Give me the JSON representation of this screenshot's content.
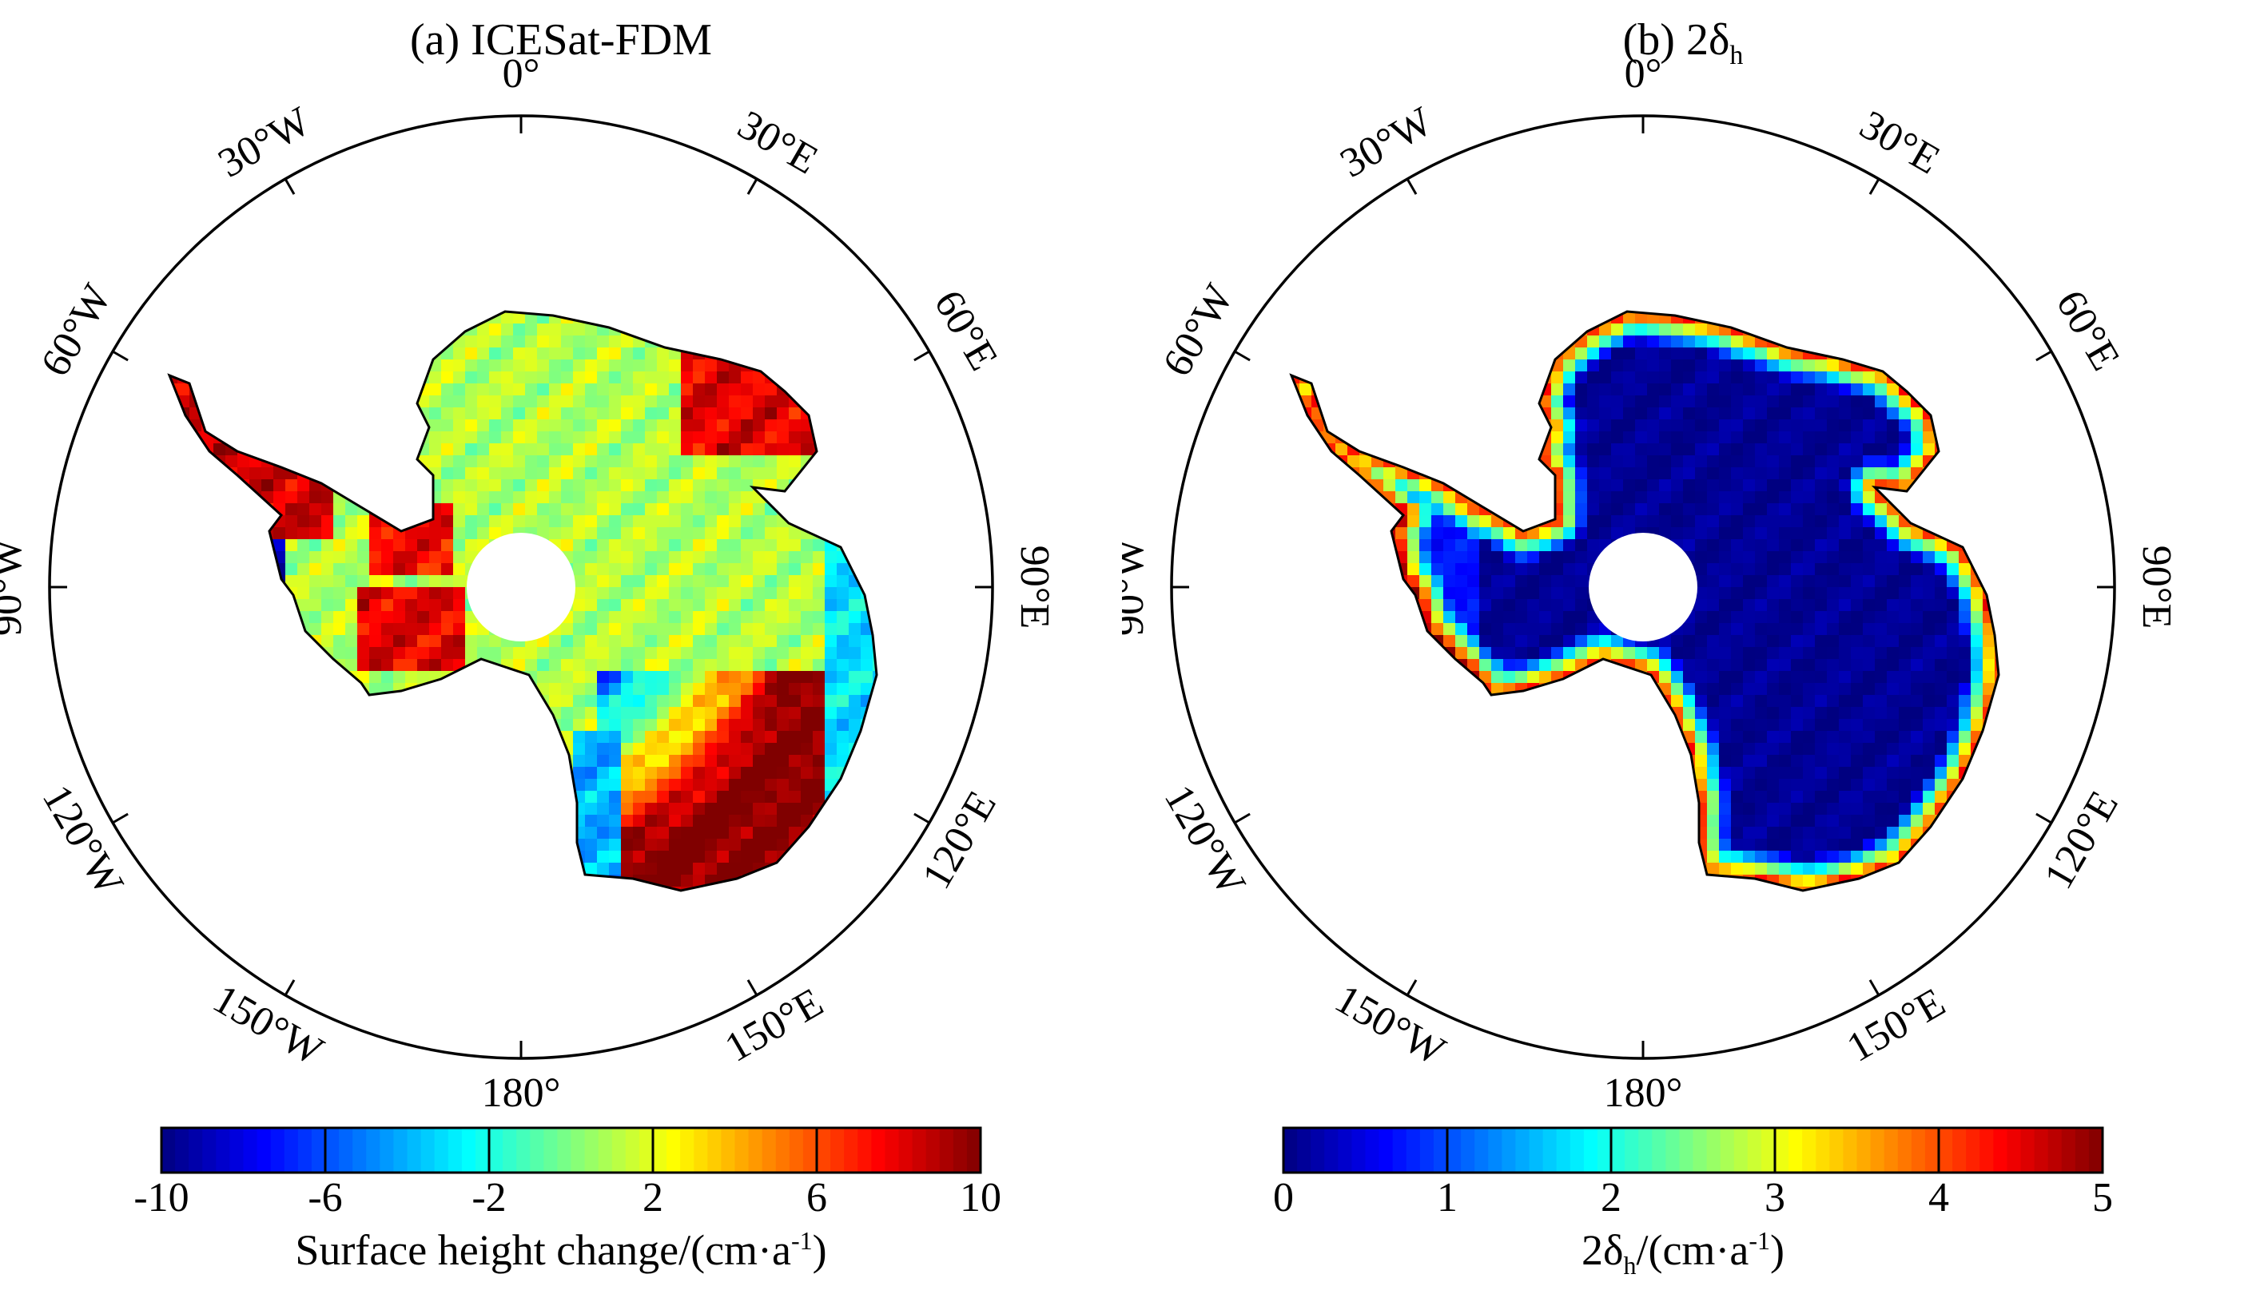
{
  "panels": [
    {
      "title": "(a) ICESat-FDM",
      "title_prefix": "(a) ICESat-FDM",
      "title_sub": "",
      "colorbar": {
        "ticks": [
          "-10",
          "-6",
          "-2",
          "2",
          "6",
          "10"
        ],
        "min": -10,
        "max": 10,
        "label_main": "Surface height change/(cm·a",
        "label_sup": "-1",
        "label_end": ")"
      },
      "pattern": "trend"
    },
    {
      "title": "(b) 2δh",
      "title_prefix": "(b) 2δ",
      "title_sub": "h",
      "colorbar": {
        "ticks": [
          "0",
          "1",
          "2",
          "3",
          "4",
          "5"
        ],
        "min": 0,
        "max": 5,
        "label_pre": "2δ",
        "label_sub": "h",
        "label_main": "/(cm·a",
        "label_sup": "-1",
        "label_end": ")"
      },
      "pattern": "uncertainty"
    }
  ],
  "graticule_labels": [
    "0°",
    "30°E",
    "60°E",
    "90°E",
    "120°E",
    "150°E",
    "180°",
    "150°W",
    "120°W",
    "90°W",
    "60°W",
    "30°W"
  ],
  "colormap": "jet",
  "colors": {
    "jet_dark_blue": "#00008f",
    "jet_cyan": "#00ffff",
    "jet_yellow": "#ffff00",
    "jet_dark_red": "#800000"
  }
}
